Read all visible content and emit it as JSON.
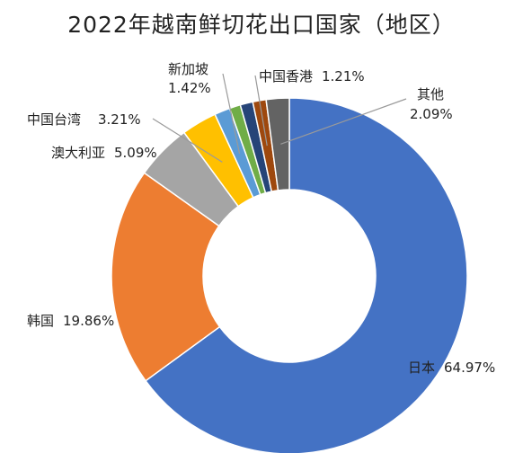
{
  "chart_data": {
    "type": "pie",
    "title": "2022年越南鲜切花出口国家（地区）",
    "slices": [
      {
        "name": "日本",
        "value": 64.97,
        "value_label": "64.97%",
        "color": "#4472C4"
      },
      {
        "name": "韩国",
        "value": 19.86,
        "value_label": "19.86%",
        "color": "#ED7D31"
      },
      {
        "name": "澳大利亚",
        "value": 5.09,
        "value_label": "5.09%",
        "color": "#A5A5A5"
      },
      {
        "name": "中国台湾",
        "value": 3.21,
        "value_label": "3.21%",
        "color": "#FFC000"
      },
      {
        "name": "新加坡",
        "value": 1.42,
        "value_label": "1.42%",
        "color": "#5B9BD5"
      },
      {
        "name": "",
        "value": 1.0,
        "value_label": "",
        "color": "#70AD47"
      },
      {
        "name": "",
        "value": 1.15,
        "value_label": "",
        "color": "#264478"
      },
      {
        "name": "中国香港",
        "value": 1.21,
        "value_label": "1.21%",
        "color": "#9E480E"
      },
      {
        "name": "其他",
        "value": 2.09,
        "value_label": "2.09%",
        "color": "#636363"
      }
    ]
  }
}
